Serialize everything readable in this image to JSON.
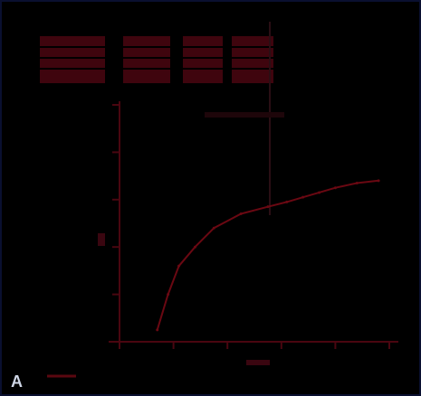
{
  "panel": {
    "letter": "A"
  },
  "colors": {
    "background": "#000000",
    "border": "#0a1030",
    "accent": "#5a0710",
    "curve": "#6a0812",
    "axis": "#4a0610",
    "guide": "#2a0e14"
  },
  "chart_data": {
    "type": "line",
    "title": "",
    "xlabel": "",
    "ylabel": "",
    "grid": false,
    "legend": "none",
    "xlim": [
      0,
      100
    ],
    "ylim": [
      0,
      100
    ],
    "x": [
      14,
      18,
      22,
      28,
      35,
      45,
      55,
      62,
      68,
      74,
      80,
      88,
      96
    ],
    "series": [
      {
        "values": [
          5,
          20,
          32,
          40,
          48,
          54,
          57,
          59,
          61,
          63,
          65,
          67,
          68
        ]
      }
    ],
    "xticks": [
      0,
      20,
      40,
      60,
      80,
      100
    ],
    "yticks": [
      0,
      20,
      40,
      60,
      80,
      100
    ]
  }
}
